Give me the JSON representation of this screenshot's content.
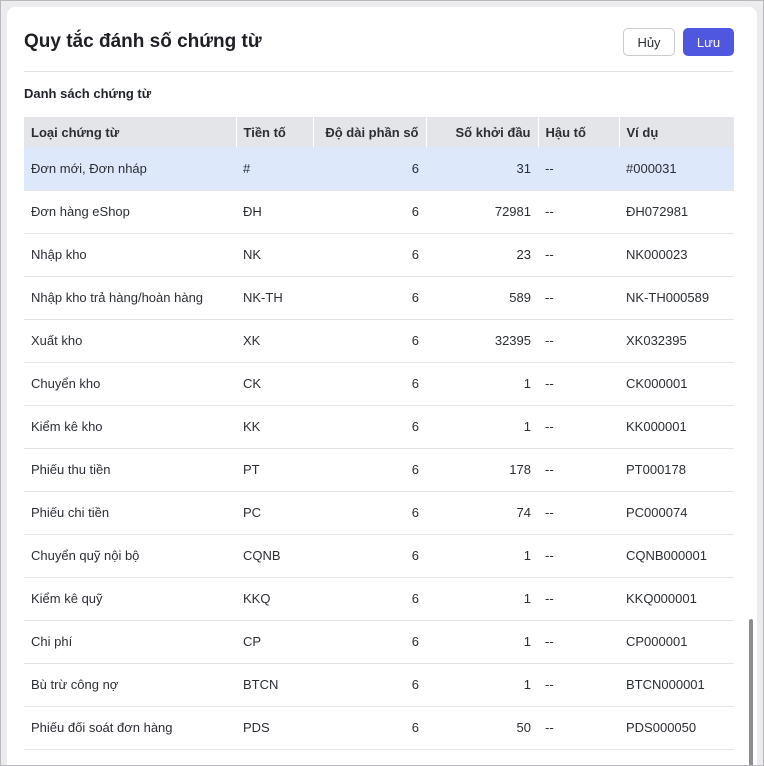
{
  "header": {
    "title": "Quy tắc đánh số chứng từ",
    "cancel_label": "Hủy",
    "save_label": "Lưu"
  },
  "section": {
    "title": "Danh sách chứng từ"
  },
  "table": {
    "columns": [
      "Loại chứng từ",
      "Tiền tố",
      "Độ dài phần số",
      "Số khởi đầu",
      "Hậu tố",
      "Ví dụ"
    ],
    "rows": [
      {
        "type": "Đơn mới, Đơn nháp",
        "prefix": "#",
        "length": "6",
        "start": "31",
        "suffix": "--",
        "example": "#000031"
      },
      {
        "type": "Đơn hàng eShop",
        "prefix": "ĐH",
        "length": "6",
        "start": "72981",
        "suffix": "--",
        "example": "ĐH072981"
      },
      {
        "type": "Nhập kho",
        "prefix": "NK",
        "length": "6",
        "start": "23",
        "suffix": "--",
        "example": "NK000023"
      },
      {
        "type": "Nhập kho trả hàng/hoàn hàng",
        "prefix": "NK-TH",
        "length": "6",
        "start": "589",
        "suffix": "--",
        "example": "NK-TH000589"
      },
      {
        "type": "Xuất kho",
        "prefix": "XK",
        "length": "6",
        "start": "32395",
        "suffix": "--",
        "example": "XK032395"
      },
      {
        "type": "Chuyển kho",
        "prefix": "CK",
        "length": "6",
        "start": "1",
        "suffix": "--",
        "example": "CK000001"
      },
      {
        "type": "Kiểm kê kho",
        "prefix": "KK",
        "length": "6",
        "start": "1",
        "suffix": "--",
        "example": "KK000001"
      },
      {
        "type": "Phiếu thu tiền",
        "prefix": "PT",
        "length": "6",
        "start": "178",
        "suffix": "--",
        "example": "PT000178"
      },
      {
        "type": "Phiếu chi tiền",
        "prefix": "PC",
        "length": "6",
        "start": "74",
        "suffix": "--",
        "example": "PC000074"
      },
      {
        "type": "Chuyển quỹ nội bộ",
        "prefix": "CQNB",
        "length": "6",
        "start": "1",
        "suffix": "--",
        "example": "CQNB000001"
      },
      {
        "type": "Kiểm kê quỹ",
        "prefix": "KKQ",
        "length": "6",
        "start": "1",
        "suffix": "--",
        "example": "KKQ000001"
      },
      {
        "type": "Chi phí",
        "prefix": "CP",
        "length": "6",
        "start": "1",
        "suffix": "--",
        "example": "CP000001"
      },
      {
        "type": "Bù trừ công nợ",
        "prefix": "BTCN",
        "length": "6",
        "start": "1",
        "suffix": "--",
        "example": "BTCN000001"
      },
      {
        "type": "Phiếu đối soát đơn hàng",
        "prefix": "PDS",
        "length": "6",
        "start": "50",
        "suffix": "--",
        "example": "PDS000050"
      }
    ]
  }
}
